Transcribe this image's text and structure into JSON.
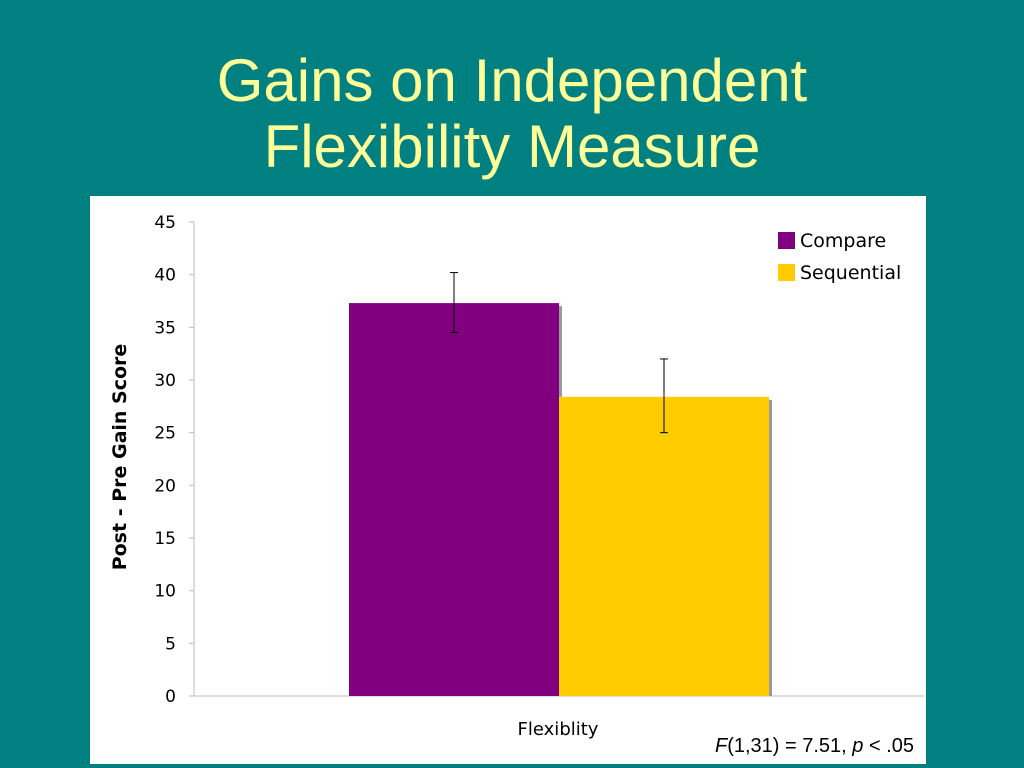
{
  "slide": {
    "title_line1": "Gains on Independent",
    "title_line2": "Flexibility Measure",
    "stat_f": "F",
    "stat_mid": "(1,31) = 7.51, ",
    "stat_p": "p",
    "stat_end": " < .05"
  },
  "colors": {
    "background": "#008080",
    "title": "#FFFF99",
    "compare": "#800080",
    "sequential": "#FFCC00"
  },
  "chart_data": {
    "type": "bar",
    "categories": [
      "Flexiblity"
    ],
    "series": [
      {
        "name": "Compare",
        "values": [
          37.3
        ],
        "error_low": [
          34.5
        ],
        "error_high": [
          40.2
        ]
      },
      {
        "name": "Sequential",
        "values": [
          28.4
        ],
        "error_low": [
          25.0
        ],
        "error_high": [
          32.0
        ]
      }
    ],
    "xlabel": "Flexiblity",
    "ylabel": "Post - Pre Gain Score",
    "ylim": [
      0,
      45
    ],
    "yticks": [
      0,
      5,
      10,
      15,
      20,
      25,
      30,
      35,
      40,
      45
    ],
    "grid": false,
    "legend": "top-right"
  }
}
